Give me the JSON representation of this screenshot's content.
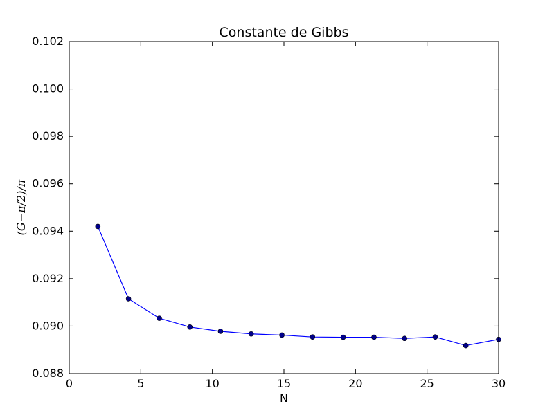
{
  "chart_data": {
    "type": "line",
    "title": "Constante de Gibbs",
    "xlabel": "N",
    "ylabel": "(G−π/2)/π",
    "xlim": [
      0,
      30
    ],
    "ylim": [
      0.088,
      0.102
    ],
    "xticks": [
      0,
      5,
      10,
      15,
      20,
      25,
      30
    ],
    "xtick_labels": [
      "0",
      "5",
      "10",
      "15",
      "20",
      "25",
      "30"
    ],
    "yticks": [
      0.088,
      0.09,
      0.092,
      0.094,
      0.096,
      0.098,
      0.1,
      0.102
    ],
    "ytick_labels": [
      "0.088",
      "0.090",
      "0.092",
      "0.094",
      "0.096",
      "0.098",
      "0.100",
      "0.102"
    ],
    "grid": false,
    "series": [
      {
        "color": "#0000ff",
        "marker_color": "#00008b",
        "x": [
          2.0,
          4.14,
          6.29,
          8.43,
          10.57,
          12.71,
          14.86,
          17.0,
          19.14,
          21.29,
          23.43,
          25.57,
          27.71,
          30.0
        ],
        "y": [
          0.0942,
          0.09115,
          0.09033,
          0.08996,
          0.08978,
          0.08967,
          0.08962,
          0.08954,
          0.08953,
          0.08953,
          0.08948,
          0.08954,
          0.08918,
          0.08944
        ]
      }
    ]
  }
}
